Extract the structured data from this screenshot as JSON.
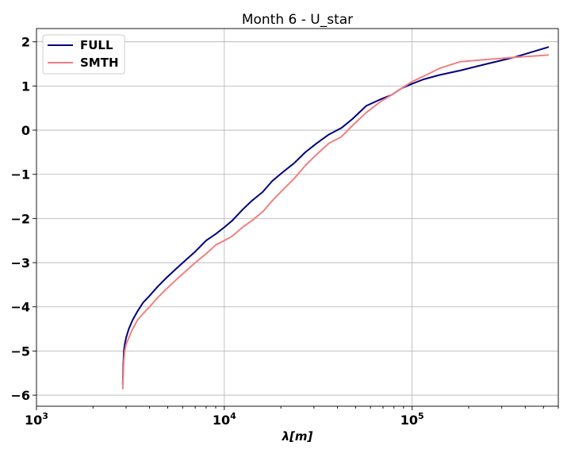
{
  "chart_data": {
    "type": "line",
    "title": "Month 6 - U_star",
    "xlabel": "λ[m]",
    "ylabel": "",
    "xscale": "log",
    "xlim": [
      1000,
      600000
    ],
    "ylim": [
      -6.25,
      2.3
    ],
    "grid": true,
    "legend_position": "top-left",
    "x_ticks": [
      {
        "base": "10",
        "exp": "3",
        "value": 1000
      },
      {
        "base": "10",
        "exp": "4",
        "value": 10000
      },
      {
        "base": "10",
        "exp": "5",
        "value": 100000
      }
    ],
    "y_ticks": [
      "2",
      "1",
      "0",
      "−1",
      "−2",
      "−3",
      "−4",
      "−5",
      "−6"
    ],
    "y_tick_values": [
      2,
      1,
      0,
      -1,
      -2,
      -3,
      -4,
      -5,
      -6
    ],
    "series": [
      {
        "name": "FULL",
        "color": "#00007f",
        "x": [
          2880,
          2900,
          2920,
          2950,
          3000,
          3100,
          3250,
          3450,
          3700,
          4000,
          4400,
          4900,
          5500,
          6200,
          7000,
          8000,
          9000,
          10000,
          11000,
          12500,
          14000,
          16000,
          18000,
          20500,
          23500,
          27000,
          31000,
          36000,
          42000,
          48000,
          57000,
          68000,
          78000,
          88000,
          100000,
          115000,
          140000,
          180000,
          250000,
          350000,
          530000
        ],
        "y": [
          -5.75,
          -5.3,
          -5.0,
          -4.85,
          -4.7,
          -4.5,
          -4.3,
          -4.1,
          -3.9,
          -3.75,
          -3.55,
          -3.35,
          -3.15,
          -2.95,
          -2.75,
          -2.5,
          -2.35,
          -2.2,
          -2.05,
          -1.8,
          -1.6,
          -1.4,
          -1.15,
          -0.95,
          -0.75,
          -0.5,
          -0.3,
          -0.1,
          0.05,
          0.25,
          0.55,
          0.7,
          0.8,
          0.95,
          1.05,
          1.15,
          1.25,
          1.35,
          1.5,
          1.65,
          1.88
        ]
      },
      {
        "name": "SMTH",
        "color": "#f08080",
        "x": [
          2880,
          2900,
          2920,
          2950,
          3000,
          3100,
          3250,
          3450,
          3700,
          4000,
          4400,
          4900,
          5500,
          6200,
          7000,
          8000,
          9000,
          10000,
          11000,
          12500,
          14000,
          16000,
          18000,
          20500,
          23500,
          27000,
          31000,
          36000,
          42000,
          48000,
          57000,
          68000,
          78000,
          88000,
          100000,
          115000,
          140000,
          180000,
          250000,
          350000,
          530000
        ],
        "y": [
          -5.85,
          -5.5,
          -5.2,
          -5.0,
          -4.85,
          -4.7,
          -4.5,
          -4.3,
          -4.15,
          -4.0,
          -3.8,
          -3.6,
          -3.4,
          -3.2,
          -3.0,
          -2.8,
          -2.6,
          -2.5,
          -2.4,
          -2.2,
          -2.05,
          -1.85,
          -1.6,
          -1.35,
          -1.1,
          -0.8,
          -0.55,
          -0.3,
          -0.15,
          0.1,
          0.4,
          0.65,
          0.8,
          0.95,
          1.1,
          1.22,
          1.4,
          1.55,
          1.6,
          1.65,
          1.7
        ]
      }
    ]
  }
}
